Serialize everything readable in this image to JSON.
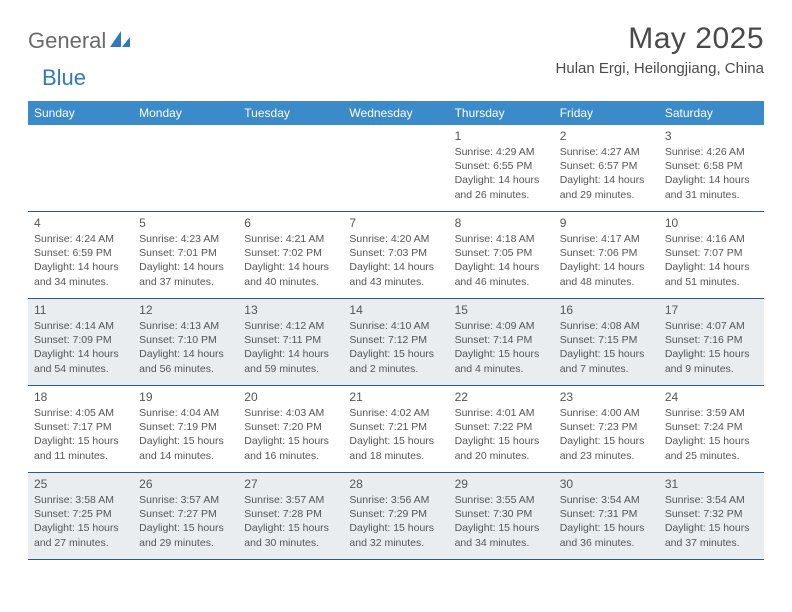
{
  "logo": {
    "text1": "General",
    "text2": "Blue"
  },
  "title": "May 2025",
  "location": "Hulan Ergi, Heilongjiang, China",
  "colors": {
    "header_bg": "#3b8bca",
    "header_text": "#ffffff",
    "rule": "#2b5a85",
    "shaded_bg": "#e9edf0",
    "body_text": "#555555",
    "logo_gray": "#6b6b6b",
    "logo_blue": "#2f79bd"
  },
  "weekdays": [
    "Sunday",
    "Monday",
    "Tuesday",
    "Wednesday",
    "Thursday",
    "Friday",
    "Saturday"
  ],
  "weeks": [
    {
      "shaded": false,
      "days": [
        {
          "n": "",
          "sr": "",
          "ss": "",
          "d1": "",
          "d2": ""
        },
        {
          "n": "",
          "sr": "",
          "ss": "",
          "d1": "",
          "d2": ""
        },
        {
          "n": "",
          "sr": "",
          "ss": "",
          "d1": "",
          "d2": ""
        },
        {
          "n": "",
          "sr": "",
          "ss": "",
          "d1": "",
          "d2": ""
        },
        {
          "n": "1",
          "sr": "Sunrise: 4:29 AM",
          "ss": "Sunset: 6:55 PM",
          "d1": "Daylight: 14 hours",
          "d2": "and 26 minutes."
        },
        {
          "n": "2",
          "sr": "Sunrise: 4:27 AM",
          "ss": "Sunset: 6:57 PM",
          "d1": "Daylight: 14 hours",
          "d2": "and 29 minutes."
        },
        {
          "n": "3",
          "sr": "Sunrise: 4:26 AM",
          "ss": "Sunset: 6:58 PM",
          "d1": "Daylight: 14 hours",
          "d2": "and 31 minutes."
        }
      ]
    },
    {
      "shaded": false,
      "days": [
        {
          "n": "4",
          "sr": "Sunrise: 4:24 AM",
          "ss": "Sunset: 6:59 PM",
          "d1": "Daylight: 14 hours",
          "d2": "and 34 minutes."
        },
        {
          "n": "5",
          "sr": "Sunrise: 4:23 AM",
          "ss": "Sunset: 7:01 PM",
          "d1": "Daylight: 14 hours",
          "d2": "and 37 minutes."
        },
        {
          "n": "6",
          "sr": "Sunrise: 4:21 AM",
          "ss": "Sunset: 7:02 PM",
          "d1": "Daylight: 14 hours",
          "d2": "and 40 minutes."
        },
        {
          "n": "7",
          "sr": "Sunrise: 4:20 AM",
          "ss": "Sunset: 7:03 PM",
          "d1": "Daylight: 14 hours",
          "d2": "and 43 minutes."
        },
        {
          "n": "8",
          "sr": "Sunrise: 4:18 AM",
          "ss": "Sunset: 7:05 PM",
          "d1": "Daylight: 14 hours",
          "d2": "and 46 minutes."
        },
        {
          "n": "9",
          "sr": "Sunrise: 4:17 AM",
          "ss": "Sunset: 7:06 PM",
          "d1": "Daylight: 14 hours",
          "d2": "and 48 minutes."
        },
        {
          "n": "10",
          "sr": "Sunrise: 4:16 AM",
          "ss": "Sunset: 7:07 PM",
          "d1": "Daylight: 14 hours",
          "d2": "and 51 minutes."
        }
      ]
    },
    {
      "shaded": true,
      "days": [
        {
          "n": "11",
          "sr": "Sunrise: 4:14 AM",
          "ss": "Sunset: 7:09 PM",
          "d1": "Daylight: 14 hours",
          "d2": "and 54 minutes."
        },
        {
          "n": "12",
          "sr": "Sunrise: 4:13 AM",
          "ss": "Sunset: 7:10 PM",
          "d1": "Daylight: 14 hours",
          "d2": "and 56 minutes."
        },
        {
          "n": "13",
          "sr": "Sunrise: 4:12 AM",
          "ss": "Sunset: 7:11 PM",
          "d1": "Daylight: 14 hours",
          "d2": "and 59 minutes."
        },
        {
          "n": "14",
          "sr": "Sunrise: 4:10 AM",
          "ss": "Sunset: 7:12 PM",
          "d1": "Daylight: 15 hours",
          "d2": "and 2 minutes."
        },
        {
          "n": "15",
          "sr": "Sunrise: 4:09 AM",
          "ss": "Sunset: 7:14 PM",
          "d1": "Daylight: 15 hours",
          "d2": "and 4 minutes."
        },
        {
          "n": "16",
          "sr": "Sunrise: 4:08 AM",
          "ss": "Sunset: 7:15 PM",
          "d1": "Daylight: 15 hours",
          "d2": "and 7 minutes."
        },
        {
          "n": "17",
          "sr": "Sunrise: 4:07 AM",
          "ss": "Sunset: 7:16 PM",
          "d1": "Daylight: 15 hours",
          "d2": "and 9 minutes."
        }
      ]
    },
    {
      "shaded": false,
      "days": [
        {
          "n": "18",
          "sr": "Sunrise: 4:05 AM",
          "ss": "Sunset: 7:17 PM",
          "d1": "Daylight: 15 hours",
          "d2": "and 11 minutes."
        },
        {
          "n": "19",
          "sr": "Sunrise: 4:04 AM",
          "ss": "Sunset: 7:19 PM",
          "d1": "Daylight: 15 hours",
          "d2": "and 14 minutes."
        },
        {
          "n": "20",
          "sr": "Sunrise: 4:03 AM",
          "ss": "Sunset: 7:20 PM",
          "d1": "Daylight: 15 hours",
          "d2": "and 16 minutes."
        },
        {
          "n": "21",
          "sr": "Sunrise: 4:02 AM",
          "ss": "Sunset: 7:21 PM",
          "d1": "Daylight: 15 hours",
          "d2": "and 18 minutes."
        },
        {
          "n": "22",
          "sr": "Sunrise: 4:01 AM",
          "ss": "Sunset: 7:22 PM",
          "d1": "Daylight: 15 hours",
          "d2": "and 20 minutes."
        },
        {
          "n": "23",
          "sr": "Sunrise: 4:00 AM",
          "ss": "Sunset: 7:23 PM",
          "d1": "Daylight: 15 hours",
          "d2": "and 23 minutes."
        },
        {
          "n": "24",
          "sr": "Sunrise: 3:59 AM",
          "ss": "Sunset: 7:24 PM",
          "d1": "Daylight: 15 hours",
          "d2": "and 25 minutes."
        }
      ]
    },
    {
      "shaded": true,
      "days": [
        {
          "n": "25",
          "sr": "Sunrise: 3:58 AM",
          "ss": "Sunset: 7:25 PM",
          "d1": "Daylight: 15 hours",
          "d2": "and 27 minutes."
        },
        {
          "n": "26",
          "sr": "Sunrise: 3:57 AM",
          "ss": "Sunset: 7:27 PM",
          "d1": "Daylight: 15 hours",
          "d2": "and 29 minutes."
        },
        {
          "n": "27",
          "sr": "Sunrise: 3:57 AM",
          "ss": "Sunset: 7:28 PM",
          "d1": "Daylight: 15 hours",
          "d2": "and 30 minutes."
        },
        {
          "n": "28",
          "sr": "Sunrise: 3:56 AM",
          "ss": "Sunset: 7:29 PM",
          "d1": "Daylight: 15 hours",
          "d2": "and 32 minutes."
        },
        {
          "n": "29",
          "sr": "Sunrise: 3:55 AM",
          "ss": "Sunset: 7:30 PM",
          "d1": "Daylight: 15 hours",
          "d2": "and 34 minutes."
        },
        {
          "n": "30",
          "sr": "Sunrise: 3:54 AM",
          "ss": "Sunset: 7:31 PM",
          "d1": "Daylight: 15 hours",
          "d2": "and 36 minutes."
        },
        {
          "n": "31",
          "sr": "Sunrise: 3:54 AM",
          "ss": "Sunset: 7:32 PM",
          "d1": "Daylight: 15 hours",
          "d2": "and 37 minutes."
        }
      ]
    }
  ]
}
